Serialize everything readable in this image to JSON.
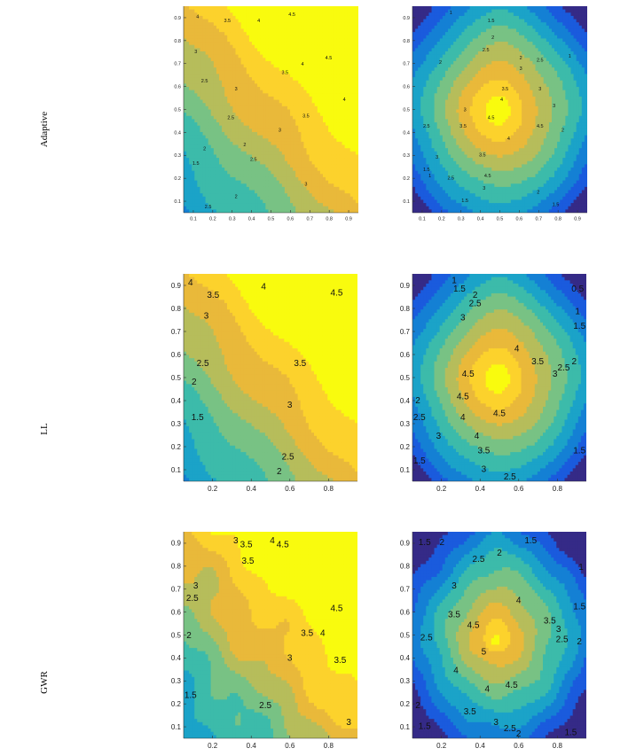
{
  "figure": {
    "rows": [
      {
        "label": "Adaptive",
        "fontsize": 11
      },
      {
        "label": "LL",
        "fontsize": 11
      },
      {
        "label": "GWR",
        "fontsize": 11
      }
    ]
  },
  "colormap": [
    "#352a87",
    "#1a5bdd",
    "#1480d4",
    "#1ba3c8",
    "#3cbbaa",
    "#78c284",
    "#b6bd5b",
    "#e9b93a",
    "#fcd22c",
    "#f9fb0e"
  ],
  "chart_data": [
    {
      "id": "adaptive-left",
      "type": "contour",
      "row": 0,
      "col": 0,
      "pattern": "diagonal",
      "xlim": [
        0.05,
        0.95
      ],
      "ylim": [
        0.05,
        0.95
      ],
      "xticks": [
        "0.1",
        "0.2",
        "0.3",
        "0.4",
        "0.5",
        "0.6",
        "0.7",
        "0.8",
        "0.9"
      ],
      "yticks": [
        "0.1",
        "0.2",
        "0.3",
        "0.4",
        "0.5",
        "0.6",
        "0.7",
        "0.8",
        "0.9"
      ],
      "levels": [
        1,
        1.5,
        2,
        2.5,
        3,
        3.5,
        4,
        4.5
      ],
      "contour_labels": [
        {
          "text": "4",
          "x": 0.08,
          "y": 0.95
        },
        {
          "text": "3.5",
          "x": 0.25,
          "y": 0.93
        },
        {
          "text": "4",
          "x": 0.43,
          "y": 0.93
        },
        {
          "text": "4.5",
          "x": 0.62,
          "y": 0.96
        },
        {
          "text": "3",
          "x": 0.07,
          "y": 0.78
        },
        {
          "text": "3.5",
          "x": 0.58,
          "y": 0.68
        },
        {
          "text": "4",
          "x": 0.68,
          "y": 0.72
        },
        {
          "text": "4.5",
          "x": 0.83,
          "y": 0.75
        },
        {
          "text": "3",
          "x": 0.3,
          "y": 0.6
        },
        {
          "text": "4",
          "x": 0.92,
          "y": 0.55
        },
        {
          "text": "2.5",
          "x": 0.12,
          "y": 0.64
        },
        {
          "text": "2.5",
          "x": 0.27,
          "y": 0.46
        },
        {
          "text": "3.5",
          "x": 0.7,
          "y": 0.47
        },
        {
          "text": "3",
          "x": 0.55,
          "y": 0.4
        },
        {
          "text": "2",
          "x": 0.12,
          "y": 0.31
        },
        {
          "text": "2",
          "x": 0.35,
          "y": 0.33
        },
        {
          "text": "1.5",
          "x": 0.07,
          "y": 0.24
        },
        {
          "text": "2.5",
          "x": 0.4,
          "y": 0.26
        },
        {
          "text": "3",
          "x": 0.7,
          "y": 0.14
        },
        {
          "text": "2",
          "x": 0.3,
          "y": 0.08
        },
        {
          "text": "2.5",
          "x": 0.14,
          "y": 0.03
        }
      ]
    },
    {
      "id": "adaptive-right",
      "type": "contour",
      "row": 0,
      "col": 1,
      "pattern": "radial",
      "xlim": [
        0.05,
        0.95
      ],
      "ylim": [
        0.05,
        0.95
      ],
      "xticks": [
        "0.1",
        "0.2",
        "0.3",
        "0.4",
        "0.5",
        "0.6",
        "0.7",
        "0.8",
        "0.9"
      ],
      "yticks": [
        "0.1",
        "0.2",
        "0.3",
        "0.4",
        "0.5",
        "0.6",
        "0.7",
        "0.8",
        "0.9"
      ],
      "levels": [
        0.5,
        1,
        1.5,
        2,
        2.5,
        3,
        3.5,
        4,
        4.5
      ],
      "contour_labels": [
        {
          "text": "1",
          "x": 0.22,
          "y": 0.97
        },
        {
          "text": "1.5",
          "x": 0.45,
          "y": 0.93
        },
        {
          "text": "2",
          "x": 0.46,
          "y": 0.85
        },
        {
          "text": "2.5",
          "x": 0.42,
          "y": 0.79
        },
        {
          "text": "2",
          "x": 0.62,
          "y": 0.75
        },
        {
          "text": "2.5",
          "x": 0.73,
          "y": 0.74
        },
        {
          "text": "1",
          "x": 0.9,
          "y": 0.76
        },
        {
          "text": "2",
          "x": 0.16,
          "y": 0.73
        },
        {
          "text": "3",
          "x": 0.62,
          "y": 0.7
        },
        {
          "text": "3.5",
          "x": 0.53,
          "y": 0.6
        },
        {
          "text": "3",
          "x": 0.73,
          "y": 0.6
        },
        {
          "text": "3",
          "x": 0.3,
          "y": 0.5
        },
        {
          "text": "4.5",
          "x": 0.45,
          "y": 0.46
        },
        {
          "text": "3.5",
          "x": 0.29,
          "y": 0.42
        },
        {
          "text": "4",
          "x": 0.51,
          "y": 0.55
        },
        {
          "text": "3",
          "x": 0.81,
          "y": 0.52
        },
        {
          "text": "2.5",
          "x": 0.08,
          "y": 0.42
        },
        {
          "text": "4.5",
          "x": 0.73,
          "y": 0.42
        },
        {
          "text": "2",
          "x": 0.86,
          "y": 0.4
        },
        {
          "text": "3",
          "x": 0.14,
          "y": 0.27
        },
        {
          "text": "4",
          "x": 0.55,
          "y": 0.36
        },
        {
          "text": "3.5",
          "x": 0.4,
          "y": 0.28
        },
        {
          "text": "4.5",
          "x": 0.43,
          "y": 0.18
        },
        {
          "text": "2.5",
          "x": 0.22,
          "y": 0.17
        },
        {
          "text": "1.5",
          "x": 0.08,
          "y": 0.21
        },
        {
          "text": "1",
          "x": 0.1,
          "y": 0.18
        },
        {
          "text": "3",
          "x": 0.41,
          "y": 0.12
        },
        {
          "text": "2",
          "x": 0.72,
          "y": 0.1
        },
        {
          "text": "1.5",
          "x": 0.3,
          "y": 0.06
        },
        {
          "text": "1.5",
          "x": 0.82,
          "y": 0.04
        }
      ]
    },
    {
      "id": "ll-left",
      "type": "contour",
      "row": 1,
      "col": 0,
      "pattern": "diagonal",
      "xlim": [
        0.05,
        0.95
      ],
      "ylim": [
        0.05,
        0.95
      ],
      "xticks": [
        "0.2",
        "0.4",
        "0.6",
        "0.8"
      ],
      "yticks": [
        "0.1",
        "0.2",
        "0.3",
        "0.4",
        "0.5",
        "0.6",
        "0.7",
        "0.8",
        "0.9"
      ],
      "levels": [
        1.5,
        2,
        2.5,
        3,
        3.5,
        4,
        4.5
      ],
      "contour_labels": [
        {
          "text": "4",
          "x": 0.04,
          "y": 0.96
        },
        {
          "text": "3.5",
          "x": 0.17,
          "y": 0.9
        },
        {
          "text": "4",
          "x": 0.46,
          "y": 0.94
        },
        {
          "text": "4.5",
          "x": 0.88,
          "y": 0.91
        },
        {
          "text": "3",
          "x": 0.13,
          "y": 0.8
        },
        {
          "text": "2.5",
          "x": 0.11,
          "y": 0.57
        },
        {
          "text": "3.5",
          "x": 0.67,
          "y": 0.57
        },
        {
          "text": "2",
          "x": 0.06,
          "y": 0.48
        },
        {
          "text": "3",
          "x": 0.61,
          "y": 0.37
        },
        {
          "text": "1.5",
          "x": 0.08,
          "y": 0.31
        },
        {
          "text": "2.5",
          "x": 0.6,
          "y": 0.12
        },
        {
          "text": "2",
          "x": 0.55,
          "y": 0.05
        }
      ]
    },
    {
      "id": "ll-right",
      "type": "contour",
      "row": 1,
      "col": 1,
      "pattern": "radial",
      "xlim": [
        0.05,
        0.95
      ],
      "ylim": [
        0.05,
        0.95
      ],
      "xticks": [
        "0.2",
        "0.4",
        "0.6",
        "0.8"
      ],
      "yticks": [
        "0.1",
        "0.2",
        "0.3",
        "0.4",
        "0.5",
        "0.6",
        "0.7",
        "0.8",
        "0.9"
      ],
      "levels": [
        0.5,
        1,
        1.5,
        2,
        2.5,
        3,
        3.5,
        4,
        4.5
      ],
      "contour_labels": [
        {
          "text": "1",
          "x": 0.24,
          "y": 0.97
        },
        {
          "text": "1.5",
          "x": 0.27,
          "y": 0.93
        },
        {
          "text": "0.5",
          "x": 0.95,
          "y": 0.93
        },
        {
          "text": "2",
          "x": 0.36,
          "y": 0.9
        },
        {
          "text": "2.5",
          "x": 0.36,
          "y": 0.86
        },
        {
          "text": "1",
          "x": 0.95,
          "y": 0.82
        },
        {
          "text": "3",
          "x": 0.29,
          "y": 0.79
        },
        {
          "text": "1.5",
          "x": 0.96,
          "y": 0.75
        },
        {
          "text": "4",
          "x": 0.6,
          "y": 0.64
        },
        {
          "text": "3.5",
          "x": 0.72,
          "y": 0.58
        },
        {
          "text": "2",
          "x": 0.93,
          "y": 0.58
        },
        {
          "text": "2.5",
          "x": 0.87,
          "y": 0.55
        },
        {
          "text": "3",
          "x": 0.82,
          "y": 0.52
        },
        {
          "text": "4.5",
          "x": 0.32,
          "y": 0.52
        },
        {
          "text": "4.5",
          "x": 0.29,
          "y": 0.41
        },
        {
          "text": "2",
          "x": 0.01,
          "y": 0.39
        },
        {
          "text": "2.5",
          "x": 0.04,
          "y": 0.31
        },
        {
          "text": "4",
          "x": 0.29,
          "y": 0.31
        },
        {
          "text": "4.5",
          "x": 0.5,
          "y": 0.33
        },
        {
          "text": "3",
          "x": 0.15,
          "y": 0.22
        },
        {
          "text": "4",
          "x": 0.37,
          "y": 0.22
        },
        {
          "text": "3.5",
          "x": 0.41,
          "y": 0.15
        },
        {
          "text": "1.5",
          "x": 0.96,
          "y": 0.15
        },
        {
          "text": "1.5",
          "x": 0.04,
          "y": 0.1
        },
        {
          "text": "3",
          "x": 0.41,
          "y": 0.06
        },
        {
          "text": "2.5",
          "x": 0.56,
          "y": 0.0
        }
      ]
    },
    {
      "id": "gwr-left",
      "type": "contour",
      "row": 2,
      "col": 0,
      "pattern": "diagonal-noisy",
      "xlim": [
        0.05,
        0.95
      ],
      "ylim": [
        0.05,
        0.95
      ],
      "xticks": [
        "0.2",
        "0.4",
        "0.6",
        "0.8"
      ],
      "yticks": [
        "0.1",
        "0.2",
        "0.3",
        "0.4",
        "0.5",
        "0.6",
        "0.7",
        "0.8",
        "0.9"
      ],
      "levels": [
        1.5,
        2,
        2.5,
        3,
        3.5,
        4,
        4.5
      ],
      "contour_labels": [
        {
          "text": "3",
          "x": 0.3,
          "y": 0.96
        },
        {
          "text": "3.5",
          "x": 0.36,
          "y": 0.94
        },
        {
          "text": "4",
          "x": 0.51,
          "y": 0.96
        },
        {
          "text": "4.5",
          "x": 0.57,
          "y": 0.94
        },
        {
          "text": "3.5",
          "x": 0.37,
          "y": 0.86
        },
        {
          "text": "3",
          "x": 0.07,
          "y": 0.74
        },
        {
          "text": "2.5",
          "x": 0.05,
          "y": 0.68
        },
        {
          "text": "4.5",
          "x": 0.88,
          "y": 0.63
        },
        {
          "text": "2",
          "x": 0.03,
          "y": 0.5
        },
        {
          "text": "3.5",
          "x": 0.71,
          "y": 0.51
        },
        {
          "text": "4",
          "x": 0.8,
          "y": 0.51
        },
        {
          "text": "3",
          "x": 0.61,
          "y": 0.39
        },
        {
          "text": "3.5",
          "x": 0.9,
          "y": 0.38
        },
        {
          "text": "1.5",
          "x": 0.04,
          "y": 0.21
        },
        {
          "text": "2.5",
          "x": 0.47,
          "y": 0.16
        },
        {
          "text": "3",
          "x": 0.95,
          "y": 0.08
        }
      ]
    },
    {
      "id": "gwr-right",
      "type": "contour",
      "row": 2,
      "col": 1,
      "pattern": "radial-peak",
      "xlim": [
        0.05,
        0.95
      ],
      "ylim": [
        0.05,
        0.95
      ],
      "xticks": [
        "0.2",
        "0.4",
        "0.6",
        "0.8"
      ],
      "yticks": [
        "0.1",
        "0.2",
        "0.3",
        "0.4",
        "0.5",
        "0.6",
        "0.7",
        "0.8",
        "0.9"
      ],
      "levels": [
        1,
        1.5,
        2,
        2.5,
        3,
        3.5,
        4,
        4.5,
        5
      ],
      "contour_labels": [
        {
          "text": "1.5",
          "x": 0.07,
          "y": 0.95
        },
        {
          "text": "2",
          "x": 0.17,
          "y": 0.95
        },
        {
          "text": "1.5",
          "x": 0.68,
          "y": 0.96
        },
        {
          "text": "2.5",
          "x": 0.38,
          "y": 0.87
        },
        {
          "text": "2",
          "x": 0.5,
          "y": 0.9
        },
        {
          "text": "1",
          "x": 0.98,
          "y": 0.83
        },
        {
          "text": "3",
          "x": 0.24,
          "y": 0.74
        },
        {
          "text": "4",
          "x": 0.61,
          "y": 0.67
        },
        {
          "text": "1.5",
          "x": 0.96,
          "y": 0.64
        },
        {
          "text": "3.5",
          "x": 0.24,
          "y": 0.6
        },
        {
          "text": "4.5",
          "x": 0.35,
          "y": 0.55
        },
        {
          "text": "3.5",
          "x": 0.79,
          "y": 0.57
        },
        {
          "text": "3",
          "x": 0.84,
          "y": 0.53
        },
        {
          "text": "2.5",
          "x": 0.08,
          "y": 0.49
        },
        {
          "text": "2.5",
          "x": 0.86,
          "y": 0.48
        },
        {
          "text": "2",
          "x": 0.96,
          "y": 0.47
        },
        {
          "text": "5",
          "x": 0.41,
          "y": 0.42
        },
        {
          "text": "4",
          "x": 0.25,
          "y": 0.33
        },
        {
          "text": "4",
          "x": 0.43,
          "y": 0.24
        },
        {
          "text": "4.5",
          "x": 0.57,
          "y": 0.26
        },
        {
          "text": "3.5",
          "x": 0.33,
          "y": 0.13
        },
        {
          "text": "3",
          "x": 0.48,
          "y": 0.08
        },
        {
          "text": "2.5",
          "x": 0.56,
          "y": 0.05
        },
        {
          "text": "2",
          "x": 0.01,
          "y": 0.16
        },
        {
          "text": "1.5",
          "x": 0.07,
          "y": 0.06
        },
        {
          "text": "2",
          "x": 0.61,
          "y": 0.01
        },
        {
          "text": "1.5",
          "x": 0.91,
          "y": 0.03
        }
      ]
    }
  ]
}
